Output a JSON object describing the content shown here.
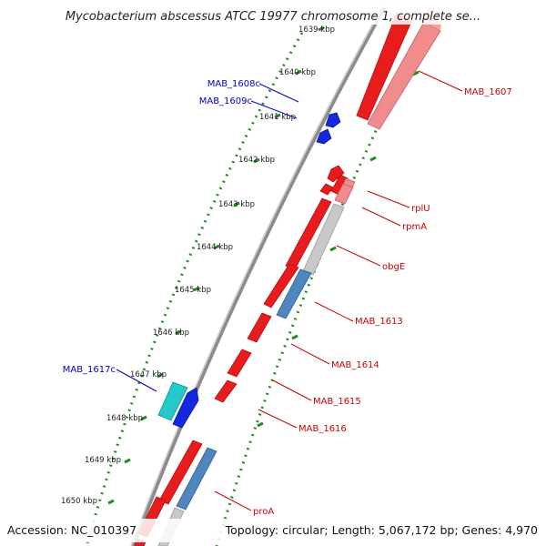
{
  "title": "Mycobacterium abscessus ATCC 19977 chromosome 1, complete se...",
  "footer": {
    "accession": "Accession: NC_010397",
    "topology": "Topology: circular; Length: 5,067,172 bp; Genes: 4,970"
  },
  "ruler": [
    "1639 kbp",
    "1640 kbp",
    "1641 kbp",
    "1642 kbp",
    "1643 kbp",
    "1644 kbp",
    "1645 kbp",
    "1646 kbp",
    "1647 kbp",
    "1648 kbp",
    "1649 kbp",
    "1650 kbp"
  ],
  "colors": {
    "backbone": "#8c8c8c",
    "gc_dots": "#1f8f1f",
    "forward_label": "#cc0000",
    "reverse_label": "#0000cc",
    "cds_red": "#e81c1c",
    "rrna_pink": "#f08c8c",
    "cds_gray": "#c8c8c8",
    "cds_steelblue": "#4f86bd",
    "cds_blue": "#1428e0",
    "cds_cyan": "#26c9c9"
  },
  "labels": {
    "reverse": [
      "MAB_1608c",
      "MAB_1609c",
      "MAB_1617c"
    ],
    "forward": [
      "MAB_1607",
      "rplU",
      "rpmA",
      "obgE",
      "MAB_1613",
      "MAB_1614",
      "MAB_1615",
      "MAB_1616",
      "proA"
    ]
  }
}
